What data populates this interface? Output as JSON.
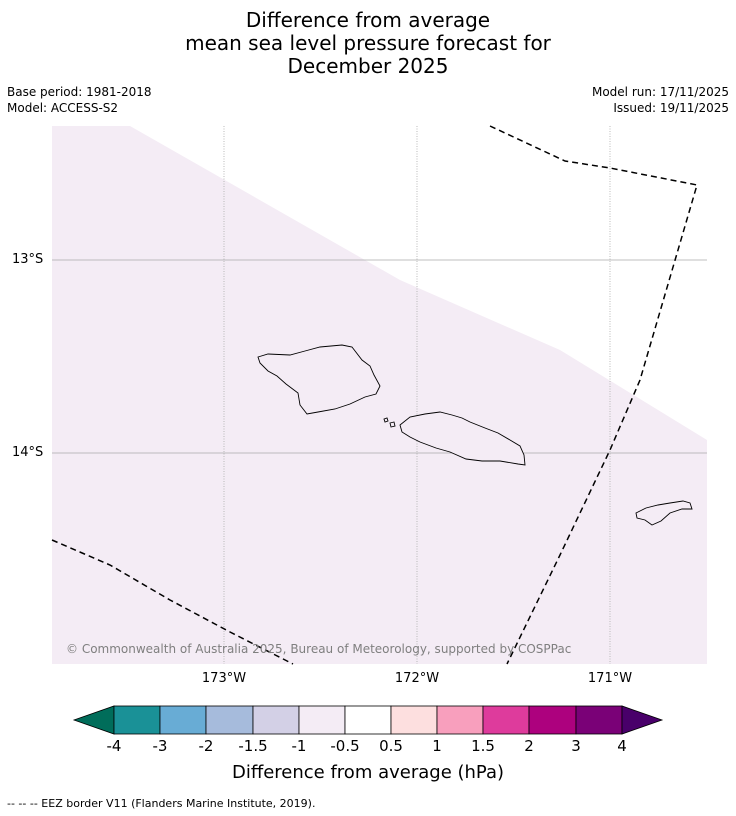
{
  "title": {
    "line1": "Difference from average",
    "line2": "mean sea level pressure forecast for",
    "line3": "December 2025"
  },
  "meta": {
    "base_period": "Base period: 1981-2018",
    "model": "Model: ACCESS-S2",
    "model_run": "Model run: 17/11/2025",
    "issued": "Issued: 19/11/2025"
  },
  "map": {
    "latitude_labels": [
      "13°S",
      "14°S"
    ],
    "longitude_labels": [
      "173°W",
      "172°W",
      "171°W"
    ],
    "copyright": "© Commonwealth of Australia 2025, Bureau of Meteorology, supported by COSPPac",
    "region_fill_color": "#f4ecf5"
  },
  "colorbar": {
    "title": "Difference from average (hPa)",
    "ticks": [
      "-4",
      "-3",
      "-2",
      "-1.5",
      "-1",
      "-0.5",
      "0.5",
      "1",
      "1.5",
      "2",
      "3",
      "4"
    ],
    "colors": [
      "#1a9197",
      "#68acd5",
      "#a6bbdc",
      "#d3d0e6",
      "#f4ecf5",
      "#ffffff",
      "#fddfdf",
      "#f89fbd",
      "#de3b9c",
      "#ad017e",
      "#7a0177"
    ],
    "under_color": "#006d5a",
    "over_color": "#49006a"
  },
  "footer": {
    "legend": "--  --  -- EEZ border V11 (Flanders Marine Institute, 2019)."
  }
}
